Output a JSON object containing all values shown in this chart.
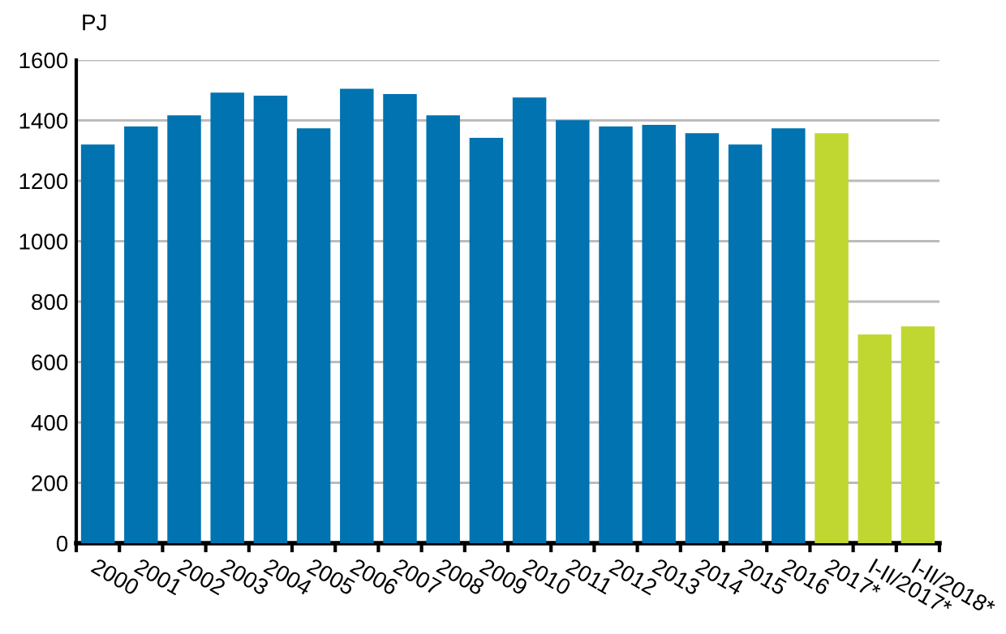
{
  "chart_data": {
    "type": "bar",
    "ylabel": "PJ",
    "categories": [
      "2000",
      "2001",
      "2002",
      "2003",
      "2004",
      "2005",
      "2006",
      "2007",
      "2008",
      "2009",
      "2010",
      "2011",
      "2012",
      "2013",
      "2014",
      "2015",
      "2016",
      "2017*",
      "I-II/2017*",
      "I-II/2018*"
    ],
    "values": [
      1320,
      1380,
      1417,
      1492,
      1482,
      1374,
      1505,
      1487,
      1417,
      1342,
      1476,
      1401,
      1380,
      1385,
      1358,
      1320,
      1374,
      1358,
      691,
      718
    ],
    "colors": [
      "#0073b0",
      "#0073b0",
      "#0073b0",
      "#0073b0",
      "#0073b0",
      "#0073b0",
      "#0073b0",
      "#0073b0",
      "#0073b0",
      "#0073b0",
      "#0073b0",
      "#0073b0",
      "#0073b0",
      "#0073b0",
      "#0073b0",
      "#0073b0",
      "#0073b0",
      "#c0d731",
      "#c0d731",
      "#c0d731"
    ],
    "ylim": [
      0,
      1600
    ],
    "yticks": [
      0,
      200,
      400,
      600,
      800,
      1000,
      1200,
      1400,
      1600
    ],
    "grid": "y"
  }
}
